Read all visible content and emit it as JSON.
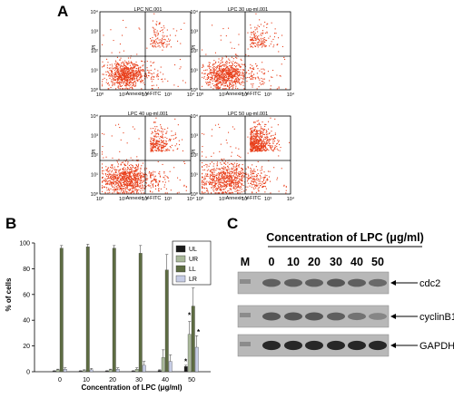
{
  "panels": {
    "a": "A",
    "b": "B",
    "c": "C"
  },
  "flow": {
    "titles": [
      "LPC NC.001",
      "LPC 30 ug-ml.001",
      "LPC 40 ug-ml.001",
      "LPC 50 ug-ml.001"
    ],
    "xlabel": "Annexin V-FITC",
    "ylabel": "PI",
    "ticks": [
      "10⁰",
      "10¹",
      "10²",
      "10³",
      "10⁴"
    ],
    "dot_color": "#e8401c"
  },
  "chart_data": {
    "type": "bar",
    "categories": [
      "0",
      "10",
      "20",
      "30",
      "40",
      "50"
    ],
    "xlabel": "Concentration of LPC (μg/ml)",
    "ylabel": "% of cells",
    "ylim": [
      0,
      100
    ],
    "yticks": [
      "0",
      "20",
      "40",
      "60",
      "80",
      "100"
    ],
    "legend_position": "top-right",
    "series": [
      {
        "name": "UL",
        "color": "#1a1a1a",
        "values": [
          0.5,
          0.5,
          0.5,
          0.5,
          1,
          4
        ],
        "errors": [
          0.3,
          0.3,
          0.3,
          0.3,
          0.5,
          1
        ]
      },
      {
        "name": "UR",
        "color": "#a9b89a",
        "values": [
          1.5,
          1,
          1.5,
          2,
          11,
          29
        ],
        "errors": [
          0.5,
          0.5,
          0.5,
          1,
          6,
          10
        ]
      },
      {
        "name": "LL",
        "color": "#5e6d43",
        "values": [
          96,
          97,
          96,
          92,
          79,
          51
        ],
        "errors": [
          2,
          2,
          2,
          6,
          12,
          14
        ]
      },
      {
        "name": "LR",
        "color": "#c7cde6",
        "values": [
          2,
          1.5,
          2,
          5,
          8,
          19
        ],
        "errors": [
          1,
          1,
          1,
          3,
          5,
          9
        ]
      }
    ],
    "annotations": [
      "*",
      "*",
      "*"
    ]
  },
  "blot": {
    "title": "Concentration of LPC (μg/ml)",
    "lanes": [
      "M",
      "0",
      "10",
      "20",
      "30",
      "40",
      "50"
    ],
    "bands": [
      "cdc2",
      "cyclinB1",
      "GAPDH"
    ]
  }
}
